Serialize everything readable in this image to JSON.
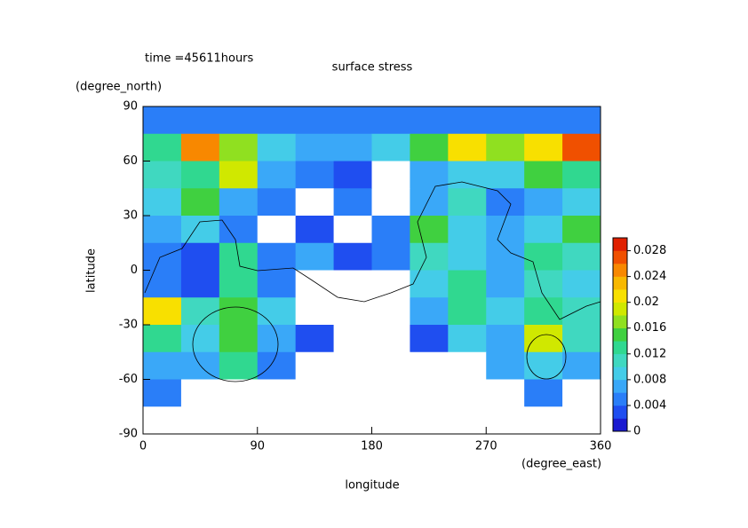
{
  "chart_data": {
    "type": "contour",
    "title": "surface stress",
    "annotation": "time =45611hours",
    "x_label": "longitude",
    "x_unit": "(degree_east)",
    "y_label": "latitude",
    "y_unit": "(degree_north)",
    "xlim": [
      0,
      360
    ],
    "xticks": [
      0,
      90,
      180,
      270,
      360
    ],
    "ylim": [
      -90,
      90
    ],
    "yticks": [
      -90,
      -60,
      -30,
      0,
      30,
      60,
      90
    ],
    "z": [
      [
        0.005,
        0.005,
        0.005,
        0.005,
        0.005,
        0.005,
        0.005,
        0.005,
        0.005,
        0.004,
        0.005,
        0.005
      ],
      [
        0.012,
        0.024,
        0.016,
        0.008,
        0.006,
        0.006,
        0.008,
        0.014,
        0.02,
        0.016,
        0.02,
        0.026
      ],
      [
        0.01,
        0.012,
        0.018,
        0.006,
        0.004,
        0.003,
        0,
        0.006,
        0.008,
        0.008,
        0.014,
        0.012
      ],
      [
        0.008,
        0.014,
        0.006,
        0.004,
        0,
        0.004,
        0,
        0.006,
        0.01,
        0.004,
        0.006,
        0.008
      ],
      [
        0.006,
        0.008,
        0.004,
        0,
        0.003,
        0,
        0.004,
        0.014,
        0.008,
        0.006,
        0.008,
        0.014
      ],
      [
        0.004,
        0.003,
        0.012,
        0.004,
        0.006,
        0.003,
        0.004,
        0.01,
        0.008,
        0.006,
        0.012,
        0.01
      ],
      [
        0.004,
        0.003,
        0.012,
        0.004,
        0,
        0,
        0,
        0.008,
        0.012,
        0.006,
        0.01,
        0.008
      ],
      [
        0.02,
        0.01,
        0.014,
        0.008,
        0,
        0,
        0,
        0.006,
        0.012,
        0.008,
        0.012,
        0.01
      ],
      [
        0.012,
        0.008,
        0.014,
        0.006,
        0.003,
        0,
        0,
        0.003,
        0.008,
        0.006,
        0.018,
        0.01
      ],
      [
        0.006,
        0.006,
        0.012,
        0.004,
        0,
        0,
        0,
        0,
        0,
        0.006,
        0.008,
        0.006
      ],
      [
        0.004,
        0,
        0,
        0,
        0,
        0,
        0,
        0,
        0,
        0,
        0.004,
        0
      ],
      [
        0,
        0,
        0,
        0,
        0,
        0,
        0,
        0,
        0,
        0,
        0,
        0
      ]
    ],
    "clim": [
      0,
      0.03
    ],
    "cticks": [
      0,
      0.004,
      0.008,
      0.012,
      0.016,
      0.02,
      0.024,
      0.028
    ],
    "colors": [
      "#1a1ad0",
      "#1f4ef0",
      "#2a7ef8",
      "#3aa8f8",
      "#44cce8",
      "#40d8c0",
      "#30d890",
      "#40d040",
      "#90e020",
      "#d0e800",
      "#f8e000",
      "#f8b800",
      "#f88800",
      "#f05000",
      "#e02000"
    ]
  }
}
